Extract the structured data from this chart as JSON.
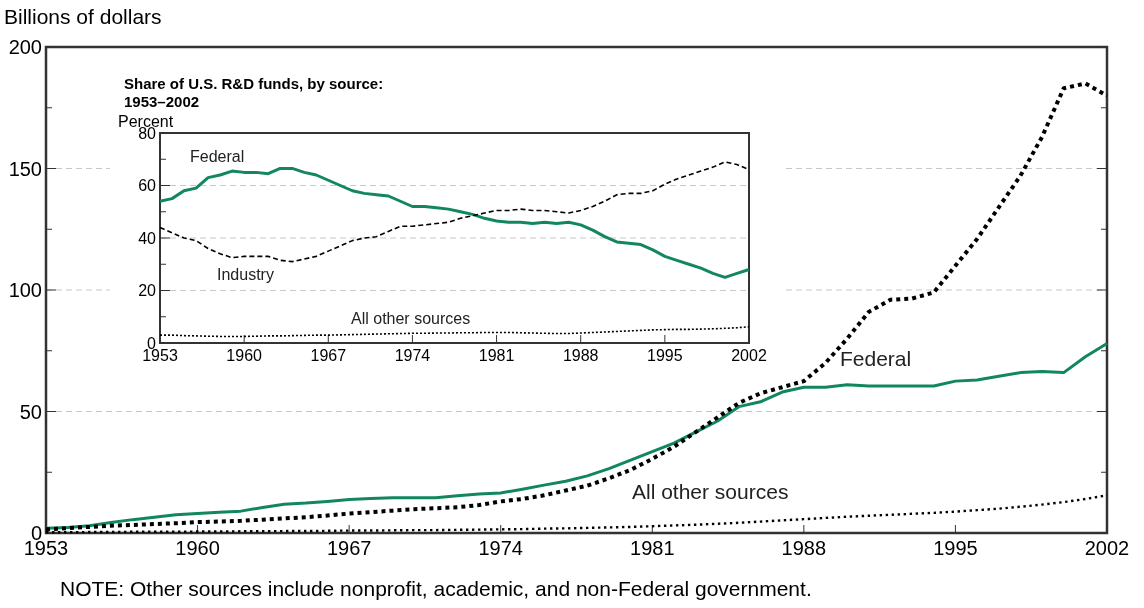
{
  "chart_data": [
    {
      "type": "line",
      "ylabel": "Billions of dollars",
      "annotations": [
        "NOTE: Other sources include nonprofit, academic, and non-Federal government."
      ],
      "x": [
        1953,
        1954,
        1955,
        1956,
        1957,
        1958,
        1959,
        1960,
        1961,
        1962,
        1963,
        1964,
        1965,
        1966,
        1967,
        1968,
        1969,
        1970,
        1971,
        1972,
        1973,
        1974,
        1975,
        1976,
        1977,
        1978,
        1979,
        1980,
        1981,
        1982,
        1983,
        1984,
        1985,
        1986,
        1987,
        1988,
        1989,
        1990,
        1991,
        1992,
        1993,
        1994,
        1995,
        1996,
        1997,
        1998,
        1999,
        2000,
        2001,
        2002
      ],
      "xlim": [
        1953,
        2002
      ],
      "xticks": [
        1953,
        1960,
        1967,
        1974,
        1981,
        1988,
        1995,
        2002
      ],
      "ylim": [
        0,
        200
      ],
      "yticks": [
        0,
        {
          "value": 25,
          "label": null
        },
        50,
        {
          "value": 75,
          "label": null
        },
        100,
        {
          "value": 125,
          "label": null
        },
        150,
        {
          "value": 175,
          "label": null
        },
        200
      ],
      "grid": "y",
      "series": [
        {
          "name": "Federal",
          "color": "#13875c",
          "line_style": "solid",
          "values": [
            2,
            2.3,
            3,
            4.3,
            5.5,
            6.5,
            7.5,
            8,
            8.5,
            9,
            10.5,
            11.8,
            12.3,
            13,
            13.8,
            14.2,
            14.5,
            14.5,
            14.5,
            15.3,
            16,
            16.5,
            18,
            19.7,
            21.3,
            23.5,
            26.5,
            30,
            33.5,
            37,
            41.5,
            46,
            52,
            54,
            58,
            60,
            60,
            61,
            60.5,
            60.5,
            60.5,
            60.5,
            62.5,
            63,
            64.5,
            66,
            66.5,
            66,
            72.5,
            78
          ]
        },
        {
          "color": "#000000",
          "line_style": "dotted",
          "values": [
            1.5,
            2,
            2.5,
            3,
            3.3,
            3.7,
            4,
            4.5,
            4.7,
            5,
            5.5,
            6,
            6.5,
            7.2,
            8,
            8.6,
            9.2,
            9.8,
            10.2,
            10.6,
            11.5,
            13,
            14,
            15.5,
            17.5,
            19.5,
            22.5,
            26,
            30.5,
            35.5,
            41.5,
            47.5,
            53.5,
            57.5,
            60,
            62.5,
            70,
            80,
            91,
            96,
            96.5,
            99,
            110,
            121,
            134,
            147,
            163,
            183,
            185,
            180
          ]
        },
        {
          "name": "All other sources",
          "color": "#000000",
          "line_style": "dotted",
          "values": [
            0.3,
            0.3,
            0.4,
            0.4,
            0.5,
            0.5,
            0.5,
            0.6,
            0.6,
            0.7,
            0.7,
            0.8,
            0.8,
            0.9,
            1,
            1,
            1.1,
            1.2,
            1.2,
            1.3,
            1.4,
            1.5,
            1.6,
            1.8,
            1.9,
            2.1,
            2.3,
            2.5,
            2.8,
            3.1,
            3.4,
            3.8,
            4.2,
            4.7,
            5.2,
            5.7,
            6.2,
            6.7,
            7.1,
            7.5,
            7.9,
            8.3,
            8.8,
            9.4,
            10,
            10.8,
            11.7,
            12.7,
            14,
            15.5
          ]
        }
      ]
    },
    {
      "type": "line",
      "title": "Share of U.S. R&D funds, by source: 1953–2002",
      "ylabel": "Percent",
      "x": [
        1953,
        1954,
        1955,
        1956,
        1957,
        1958,
        1959,
        1960,
        1961,
        1962,
        1963,
        1964,
        1965,
        1966,
        1967,
        1968,
        1969,
        1970,
        1971,
        1972,
        1973,
        1974,
        1975,
        1976,
        1977,
        1978,
        1979,
        1980,
        1981,
        1982,
        1983,
        1984,
        1985,
        1986,
        1987,
        1988,
        1989,
        1990,
        1991,
        1992,
        1993,
        1994,
        1995,
        1996,
        1997,
        1998,
        1999,
        2000,
        2001,
        2002
      ],
      "xlim": [
        1953,
        2002
      ],
      "xticks": [
        1953,
        1960,
        1967,
        1974,
        1981,
        1988,
        1995,
        2002
      ],
      "ylim": [
        0,
        80
      ],
      "yticks": [
        0,
        {
          "value": 10,
          "label": null
        },
        20,
        {
          "value": 30,
          "label": null
        },
        40,
        {
          "value": 50,
          "label": null
        },
        60,
        {
          "value": 70,
          "label": null
        },
        80
      ],
      "grid": "y",
      "series": [
        {
          "name": "Federal",
          "color": "#13875c",
          "line_style": "solid",
          "values": [
            54,
            55,
            58,
            59,
            63,
            64,
            65.5,
            65,
            65,
            64.5,
            66.5,
            66.5,
            65,
            64,
            62,
            60,
            58,
            57,
            56.5,
            56,
            54,
            52,
            52,
            51.5,
            51,
            50,
            49,
            47.5,
            46.5,
            46,
            46,
            45.5,
            46,
            45.5,
            46,
            45,
            43,
            40.5,
            38.5,
            38,
            37.5,
            35.5,
            33,
            31.5,
            30,
            28.5,
            26.5,
            25,
            26.5,
            28
          ]
        },
        {
          "name": "Industry",
          "color": "#000000",
          "line_style": "dashed",
          "values": [
            44,
            42,
            40,
            39,
            36,
            34,
            32.5,
            33,
            33,
            33,
            31.5,
            31,
            32,
            33,
            35,
            37,
            39,
            40,
            40.5,
            42.5,
            44.5,
            44.5,
            45,
            45.5,
            46,
            47.5,
            48.5,
            49.5,
            50.5,
            50.5,
            51,
            50.5,
            50.5,
            50,
            49.5,
            50.5,
            52,
            54,
            56.5,
            57,
            57,
            58,
            60.5,
            62.5,
            64,
            65.5,
            67,
            69,
            68,
            66
          ]
        },
        {
          "name": "All other sources",
          "color": "#000000",
          "line_style": "dotted",
          "values": [
            3,
            3,
            2.8,
            2.7,
            2.6,
            2.5,
            2.5,
            2.5,
            2.6,
            2.7,
            2.7,
            2.8,
            2.9,
            3,
            3,
            3.1,
            3.2,
            3.3,
            3.4,
            3.5,
            3.6,
            3.7,
            3.7,
            3.8,
            3.8,
            3.9,
            3.9,
            4,
            4,
            4,
            3.9,
            3.8,
            3.7,
            3.6,
            3.6,
            3.8,
            4,
            4.2,
            4.4,
            4.6,
            4.8,
            5,
            5.1,
            5.2,
            5.2,
            5.3,
            5.4,
            5.6,
            5.8,
            6.2
          ]
        }
      ]
    }
  ]
}
